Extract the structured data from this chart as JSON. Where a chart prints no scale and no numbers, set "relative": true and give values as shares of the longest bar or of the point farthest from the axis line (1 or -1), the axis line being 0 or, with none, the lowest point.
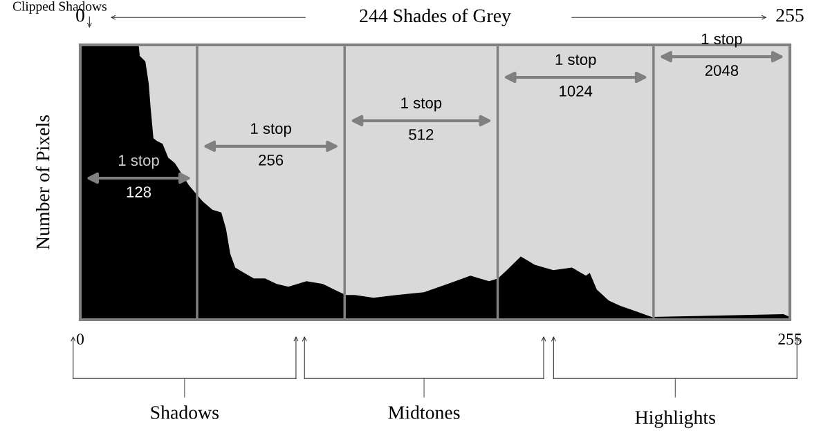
{
  "chart_data": {
    "type": "area",
    "title": "244 Shades of Grey",
    "ylabel": "Number of Pixels",
    "relative": true,
    "x": [
      0,
      21,
      21.4,
      23.4,
      24.6,
      25.3,
      26.3,
      27.6,
      29.6,
      31.6,
      34,
      36.5,
      39,
      41.5,
      44,
      47.5,
      50.7,
      52.4,
      53.9,
      55.7,
      58.9,
      62.4,
      66.4,
      70.6,
      74.8,
      81.3,
      87.2,
      91.2,
      95.4,
      98.7,
      105.4,
      113.6,
      123.5,
      132,
      140.2,
      146.9,
      150.1,
      153.3,
      158.3,
      163.3,
      170,
      176.7,
      181.7,
      183.1,
      185.6,
      189.9,
      194.1,
      199.8,
      205.3,
      252.7,
      255
    ],
    "series": [
      {
        "color": "#000000",
        "values": [
          1,
          1,
          0.96,
          0.94,
          0.86,
          0.77,
          0.66,
          0.65,
          0.64,
          0.59,
          0.57,
          0.53,
          0.49,
          0.46,
          0.43,
          0.4,
          0.39,
          0.33,
          0.24,
          0.19,
          0.17,
          0.15,
          0.15,
          0.13,
          0.12,
          0.14,
          0.13,
          0.11,
          0.09,
          0.09,
          0.08,
          0.09,
          0.1,
          0.13,
          0.16,
          0.14,
          0.15,
          0.18,
          0.23,
          0.2,
          0.18,
          0.19,
          0.16,
          0.17,
          0.11,
          0.07,
          0.05,
          0.03,
          0.01,
          0.02,
          0.01
        ]
      }
    ],
    "xlim": [
      0,
      255
    ],
    "xticks": [
      0,
      255
    ],
    "x2lim": [
      0,
      255
    ],
    "x2ticks": [
      0,
      255
    ],
    "ref_lines": [
      {
        "axis": "x",
        "value": 42,
        "color": "#808080"
      },
      {
        "axis": "x",
        "value": 95,
        "color": "#808080"
      },
      {
        "axis": "x",
        "value": 150,
        "color": "#808080"
      },
      {
        "axis": "x",
        "value": 206,
        "color": "#808080"
      }
    ],
    "annotations": [
      "Clipped Shadows",
      "1 stop",
      "128",
      "1 stop",
      "256",
      "1 stop",
      "512",
      "1 stop",
      "1024",
      "1 stop",
      "2048",
      "Shadows",
      "Midtones",
      "Highlights"
    ]
  }
}
